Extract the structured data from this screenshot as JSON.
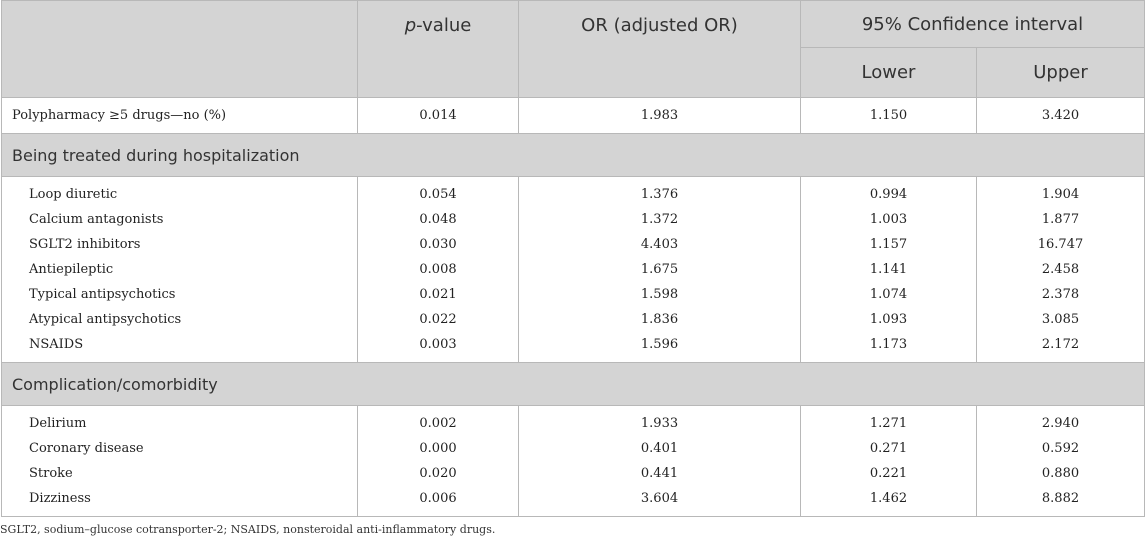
{
  "header": {
    "col_label": "",
    "p_prefix": "p",
    "p_suffix": "-value",
    "or": "OR (adjusted OR)",
    "ci": "95% Confidence interval",
    "lower": "Lower",
    "upper": "Upper"
  },
  "polypharmacy": {
    "label": "Polypharmacy ≥5 drugs—no (%)",
    "p": "0.014",
    "or": "1.983",
    "lower": "1.150",
    "upper": "3.420"
  },
  "sections": [
    {
      "title": "Being treated during hospitalization",
      "rows": [
        {
          "label": "Loop diuretic",
          "p": "0.054",
          "or": "1.376",
          "lower": "0.994",
          "upper": "1.904"
        },
        {
          "label": "Calcium antagonists",
          "p": "0.048",
          "or": "1.372",
          "lower": "1.003",
          "upper": "1.877"
        },
        {
          "label": "SGLT2 inhibitors",
          "p": "0.030",
          "or": "4.403",
          "lower": "1.157",
          "upper": "16.747"
        },
        {
          "label": "Antiepileptic",
          "p": "0.008",
          "or": "1.675",
          "lower": "1.141",
          "upper": "2.458"
        },
        {
          "label": "Typical antipsychotics",
          "p": "0.021",
          "or": "1.598",
          "lower": "1.074",
          "upper": "2.378"
        },
        {
          "label": "Atypical antipsychotics",
          "p": "0.022",
          "or": "1.836",
          "lower": "1.093",
          "upper": "3.085"
        },
        {
          "label": "NSAIDS",
          "p": "0.003",
          "or": "1.596",
          "lower": "1.173",
          "upper": "2.172"
        }
      ]
    },
    {
      "title": "Complication/comorbidity",
      "rows": [
        {
          "label": "Delirium",
          "p": "0.002",
          "or": "1.933",
          "lower": "1.271",
          "upper": "2.940"
        },
        {
          "label": "Coronary disease",
          "p": "0.000",
          "or": "0.401",
          "lower": "0.271",
          "upper": "0.592"
        },
        {
          "label": "Stroke",
          "p": "0.020",
          "or": "0.441",
          "lower": "0.221",
          "upper": "0.880"
        },
        {
          "label": "Dizziness",
          "p": "0.006",
          "or": "3.604",
          "lower": "1.462",
          "upper": "8.882"
        }
      ]
    }
  ],
  "footnote": "SGLT2, sodium–glucose cotransporter-2; NSAIDS, nonsteroidal anti-inflammatory drugs."
}
